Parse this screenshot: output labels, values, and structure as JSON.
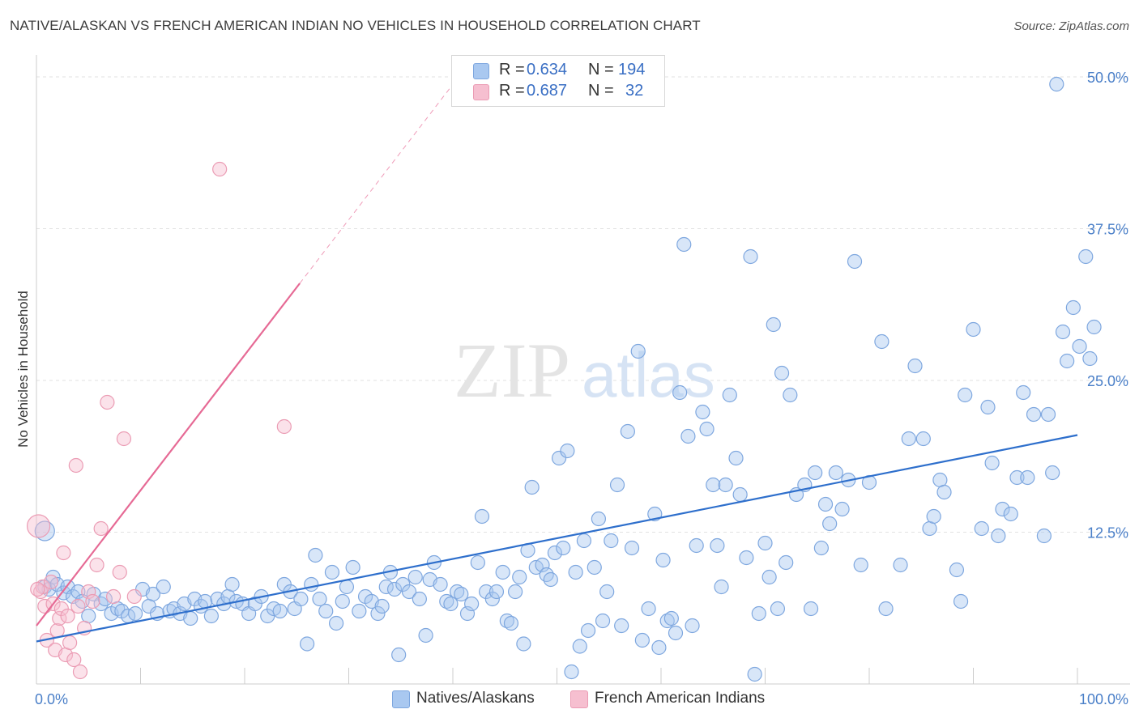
{
  "title": "NATIVE/ALASKAN VS FRENCH AMERICAN INDIAN NO VEHICLES IN HOUSEHOLD CORRELATION CHART",
  "source": "Source: ZipAtlas.com",
  "watermark": {
    "zip": "ZIP",
    "atlas": "atlas"
  },
  "legend_top": [
    {
      "r_label": "R =",
      "r_value": "0.634",
      "n_label": "N =",
      "n_value": "194",
      "color": "#a9c8f0"
    },
    {
      "r_label": "R =",
      "r_value": "0.687",
      "n_label": "N =",
      "n_value": "32",
      "color": "#f6bfd0"
    }
  ],
  "legend_bottom": [
    {
      "label": "Natives/Alaskans",
      "color": "#a9c8f0"
    },
    {
      "label": "French American Indians",
      "color": "#f6bfd0"
    }
  ],
  "chart_data": {
    "type": "scatter",
    "ylabel": "No Vehicles in Household",
    "xlabel": "",
    "xlim": [
      0,
      100
    ],
    "ylim": [
      0,
      51
    ],
    "x_tick_labels": [
      {
        "value": 0,
        "label": "0.0%"
      },
      {
        "value": 100,
        "label": "100.0%"
      }
    ],
    "y_tick_labels": [
      {
        "value": 12.5,
        "label": "12.5%"
      },
      {
        "value": 25,
        "label": "25.0%"
      },
      {
        "value": 37.5,
        "label": "37.5%"
      },
      {
        "value": 50,
        "label": "50.0%"
      }
    ],
    "grid": true,
    "series": [
      {
        "name": "Natives/Alaskans",
        "color": "#7ea7df",
        "fill": "#a9c8f0",
        "trend_color": "#2e6fcc",
        "trend": {
          "x0": 0,
          "y0": 3.5,
          "x1": 100,
          "y1": 20.5,
          "dash_x1": 100
        },
        "points": [
          [
            0.8,
            8.0
          ],
          [
            1.2,
            7.8
          ],
          [
            1.6,
            8.8
          ],
          [
            2.0,
            8.2
          ],
          [
            2.6,
            7.5
          ],
          [
            3.0,
            8.0
          ],
          [
            3.5,
            7.2
          ],
          [
            4.0,
            7.6
          ],
          [
            4.4,
            6.8
          ],
          [
            5.0,
            5.6
          ],
          [
            5.5,
            7.4
          ],
          [
            6.2,
            6.6
          ],
          [
            6.6,
            7.0
          ],
          [
            7.2,
            5.8
          ],
          [
            7.8,
            6.2
          ],
          [
            8.2,
            6.0
          ],
          [
            8.8,
            5.6
          ],
          [
            9.5,
            5.8
          ],
          [
            10.2,
            7.8
          ],
          [
            10.8,
            6.4
          ],
          [
            11.2,
            7.4
          ],
          [
            11.6,
            5.8
          ],
          [
            12.2,
            8.0
          ],
          [
            12.8,
            6.0
          ],
          [
            13.2,
            6.2
          ],
          [
            13.8,
            5.8
          ],
          [
            14.2,
            6.6
          ],
          [
            14.8,
            5.4
          ],
          [
            15.2,
            7.0
          ],
          [
            15.8,
            6.4
          ],
          [
            16.2,
            6.8
          ],
          [
            16.8,
            5.6
          ],
          [
            17.4,
            7.0
          ],
          [
            18.0,
            6.6
          ],
          [
            18.4,
            7.2
          ],
          [
            18.8,
            8.2
          ],
          [
            19.2,
            6.8
          ],
          [
            19.8,
            6.6
          ],
          [
            20.4,
            5.8
          ],
          [
            21.0,
            6.6
          ],
          [
            21.6,
            7.2
          ],
          [
            22.2,
            5.6
          ],
          [
            22.8,
            6.2
          ],
          [
            23.4,
            6.0
          ],
          [
            23.8,
            8.2
          ],
          [
            24.4,
            7.6
          ],
          [
            24.8,
            6.2
          ],
          [
            25.4,
            7.0
          ],
          [
            26.0,
            3.3
          ],
          [
            26.4,
            8.2
          ],
          [
            26.8,
            10.6
          ],
          [
            27.2,
            7.0
          ],
          [
            27.8,
            6.0
          ],
          [
            28.4,
            9.2
          ],
          [
            28.8,
            5.0
          ],
          [
            29.4,
            6.8
          ],
          [
            29.8,
            8.0
          ],
          [
            30.4,
            9.6
          ],
          [
            31.0,
            6.0
          ],
          [
            31.6,
            7.2
          ],
          [
            32.2,
            6.8
          ],
          [
            32.8,
            5.8
          ],
          [
            33.2,
            6.4
          ],
          [
            33.6,
            8.0
          ],
          [
            34.0,
            9.2
          ],
          [
            34.4,
            7.8
          ],
          [
            34.8,
            2.4
          ],
          [
            35.2,
            8.2
          ],
          [
            35.8,
            7.6
          ],
          [
            36.4,
            8.8
          ],
          [
            36.8,
            7.0
          ],
          [
            37.4,
            4.0
          ],
          [
            37.8,
            8.6
          ],
          [
            38.2,
            10.0
          ],
          [
            38.8,
            8.2
          ],
          [
            39.4,
            6.8
          ],
          [
            39.8,
            6.6
          ],
          [
            40.4,
            7.6
          ],
          [
            40.8,
            7.4
          ],
          [
            41.4,
            5.8
          ],
          [
            41.8,
            6.6
          ],
          [
            42.4,
            10.0
          ],
          [
            42.8,
            13.8
          ],
          [
            43.2,
            7.6
          ],
          [
            43.8,
            7.0
          ],
          [
            44.2,
            7.6
          ],
          [
            44.8,
            9.2
          ],
          [
            45.2,
            5.2
          ],
          [
            45.6,
            5.0
          ],
          [
            46.0,
            7.6
          ],
          [
            46.4,
            8.8
          ],
          [
            46.8,
            3.3
          ],
          [
            47.2,
            11.0
          ],
          [
            47.6,
            16.2
          ],
          [
            48.0,
            9.6
          ],
          [
            48.6,
            9.8
          ],
          [
            49.0,
            9.0
          ],
          [
            49.4,
            8.6
          ],
          [
            49.8,
            10.8
          ],
          [
            50.2,
            18.6
          ],
          [
            50.6,
            11.2
          ],
          [
            51.0,
            19.2
          ],
          [
            51.4,
            1.0
          ],
          [
            51.8,
            9.2
          ],
          [
            52.2,
            3.1
          ],
          [
            52.6,
            11.8
          ],
          [
            53.0,
            4.4
          ],
          [
            53.6,
            9.6
          ],
          [
            54.0,
            13.6
          ],
          [
            54.4,
            5.2
          ],
          [
            54.8,
            7.6
          ],
          [
            55.2,
            11.8
          ],
          [
            55.8,
            16.4
          ],
          [
            56.2,
            4.8
          ],
          [
            56.8,
            20.8
          ],
          [
            57.2,
            11.2
          ],
          [
            57.8,
            27.4
          ],
          [
            58.2,
            3.6
          ],
          [
            58.8,
            6.2
          ],
          [
            59.4,
            14.0
          ],
          [
            59.8,
            3.0
          ],
          [
            60.2,
            10.2
          ],
          [
            60.6,
            5.2
          ],
          [
            61.0,
            5.4
          ],
          [
            61.4,
            4.2
          ],
          [
            61.8,
            24.0
          ],
          [
            62.2,
            36.2
          ],
          [
            62.6,
            20.4
          ],
          [
            63.0,
            4.8
          ],
          [
            63.4,
            11.4
          ],
          [
            64.0,
            22.4
          ],
          [
            64.4,
            21.0
          ],
          [
            65.0,
            16.4
          ],
          [
            65.4,
            11.4
          ],
          [
            65.8,
            8.0
          ],
          [
            66.2,
            16.4
          ],
          [
            66.6,
            23.8
          ],
          [
            67.2,
            18.6
          ],
          [
            67.6,
            15.6
          ],
          [
            68.2,
            10.4
          ],
          [
            68.6,
            35.2
          ],
          [
            69.0,
            0.8
          ],
          [
            69.4,
            5.8
          ],
          [
            70.0,
            11.6
          ],
          [
            70.4,
            8.8
          ],
          [
            70.8,
            29.6
          ],
          [
            71.2,
            6.2
          ],
          [
            71.6,
            25.6
          ],
          [
            72.0,
            10.0
          ],
          [
            72.4,
            23.8
          ],
          [
            73.0,
            15.6
          ],
          [
            73.8,
            16.4
          ],
          [
            74.4,
            6.2
          ],
          [
            74.8,
            17.4
          ],
          [
            75.4,
            11.2
          ],
          [
            75.8,
            14.8
          ],
          [
            76.2,
            13.2
          ],
          [
            76.8,
            17.4
          ],
          [
            77.4,
            14.4
          ],
          [
            78.0,
            16.8
          ],
          [
            78.6,
            34.8
          ],
          [
            79.2,
            9.8
          ],
          [
            80.0,
            16.6
          ],
          [
            81.2,
            28.2
          ],
          [
            81.6,
            6.2
          ],
          [
            83.0,
            9.8
          ],
          [
            83.8,
            20.2
          ],
          [
            84.4,
            26.2
          ],
          [
            85.2,
            20.2
          ],
          [
            85.8,
            12.8
          ],
          [
            86.2,
            13.8
          ],
          [
            86.8,
            16.8
          ],
          [
            87.2,
            15.8
          ],
          [
            88.4,
            9.4
          ],
          [
            88.8,
            6.8
          ],
          [
            89.2,
            23.8
          ],
          [
            90.0,
            29.2
          ],
          [
            90.8,
            12.8
          ],
          [
            91.4,
            22.8
          ],
          [
            91.8,
            18.2
          ],
          [
            92.4,
            12.2
          ],
          [
            92.8,
            14.4
          ],
          [
            93.6,
            14.0
          ],
          [
            94.2,
            17.0
          ],
          [
            94.8,
            24.0
          ],
          [
            95.2,
            17.0
          ],
          [
            95.8,
            22.2
          ],
          [
            96.8,
            12.2
          ],
          [
            97.2,
            22.2
          ],
          [
            97.6,
            17.4
          ],
          [
            98.6,
            29.0
          ],
          [
            99.0,
            26.6
          ],
          [
            99.6,
            31.0
          ],
          [
            100.2,
            27.8
          ],
          [
            100.8,
            35.2
          ],
          [
            101.2,
            26.8
          ],
          [
            101.6,
            29.4
          ],
          [
            98.0,
            49.4
          ]
        ]
      },
      {
        "name": "French American Indians",
        "color": "#eb9cb4",
        "fill": "#f6bfd0",
        "trend_color": "#e66a95",
        "trend": {
          "x0": 0,
          "y0": 4.8,
          "x1": 25.3,
          "y1": 33.0,
          "dash_x1": 40.5
        },
        "points": [
          [
            0.2,
            13.0
          ],
          [
            0.4,
            7.6
          ],
          [
            0.6,
            8.0
          ],
          [
            0.8,
            6.4
          ],
          [
            1.0,
            3.6
          ],
          [
            1.4,
            8.4
          ],
          [
            1.6,
            6.6
          ],
          [
            1.8,
            2.8
          ],
          [
            2.0,
            4.4
          ],
          [
            2.2,
            5.4
          ],
          [
            2.4,
            6.2
          ],
          [
            2.6,
            10.8
          ],
          [
            2.8,
            2.4
          ],
          [
            3.0,
            5.6
          ],
          [
            3.2,
            3.4
          ],
          [
            3.6,
            2.0
          ],
          [
            3.8,
            18.0
          ],
          [
            4.0,
            6.4
          ],
          [
            4.2,
            1.0
          ],
          [
            4.6,
            4.6
          ],
          [
            5.0,
            7.6
          ],
          [
            5.4,
            6.8
          ],
          [
            5.8,
            9.8
          ],
          [
            6.2,
            12.8
          ],
          [
            6.8,
            23.2
          ],
          [
            7.4,
            7.2
          ],
          [
            8.0,
            9.2
          ],
          [
            8.4,
            20.2
          ],
          [
            9.4,
            7.2
          ],
          [
            17.6,
            42.4
          ],
          [
            23.8,
            21.2
          ],
          [
            0.1,
            7.8
          ]
        ]
      }
    ]
  }
}
